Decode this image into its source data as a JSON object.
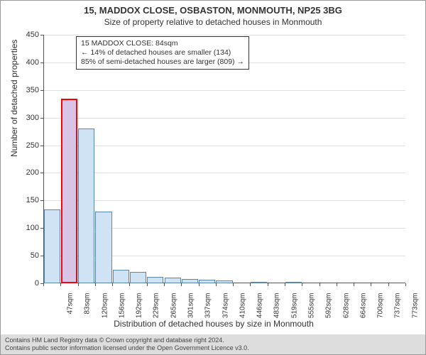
{
  "titles": {
    "main": "15, MADDOX CLOSE, OSBASTON, MONMOUTH, NP25 3BG",
    "sub": "Size of property relative to detached houses in Monmouth",
    "y_axis": "Number of detached properties",
    "x_axis": "Distribution of detached houses by size in Monmouth"
  },
  "annotation": {
    "line1": "15 MADDOX CLOSE: 84sqm",
    "line2": "← 14% of detached houses are smaller (134)",
    "line3": "85% of semi-detached houses are larger (809) →"
  },
  "footer": {
    "line1": "Contains HM Land Registry data © Crown copyright and database right 2024.",
    "line2": "Contains public sector information licensed under the Open Government Licence v3.0."
  },
  "chart": {
    "type": "histogram",
    "ylim": [
      0,
      450
    ],
    "ytick_step": 50,
    "background": "#ffffff",
    "grid_color": "#000000",
    "grid_opacity": 0.12,
    "axis_color": "#555555",
    "bar_width": 0.95,
    "bar_fill": "#cfe3f5",
    "bar_stroke": "#5a86b4",
    "bar_stroke_width": 1,
    "highlight_fill": "#d9c4e5",
    "highlight_stroke": "#ff0000",
    "highlight_stroke_width": 2,
    "highlight_index": 1,
    "data": [
      {
        "label": "47sqm",
        "value": 134
      },
      {
        "label": "83sqm",
        "value": 334
      },
      {
        "label": "120sqm",
        "value": 280
      },
      {
        "label": "156sqm",
        "value": 130
      },
      {
        "label": "192sqm",
        "value": 25
      },
      {
        "label": "229sqm",
        "value": 20
      },
      {
        "label": "265sqm",
        "value": 12
      },
      {
        "label": "301sqm",
        "value": 10
      },
      {
        "label": "337sqm",
        "value": 8
      },
      {
        "label": "374sqm",
        "value": 6
      },
      {
        "label": "410sqm",
        "value": 5
      },
      {
        "label": "446sqm",
        "value": 0
      },
      {
        "label": "483sqm",
        "value": 2
      },
      {
        "label": "519sqm",
        "value": 0
      },
      {
        "label": "555sqm",
        "value": 3
      },
      {
        "label": "592sqm",
        "value": 0
      },
      {
        "label": "628sqm",
        "value": 0
      },
      {
        "label": "664sqm",
        "value": 0
      },
      {
        "label": "700sqm",
        "value": 0
      },
      {
        "label": "737sqm",
        "value": 0
      },
      {
        "label": "773sqm",
        "value": 0
      }
    ],
    "label_fontsize": 10,
    "tick_fontsize": 11,
    "title_fontsize": 13,
    "subtitle_fontsize": 12,
    "annotation_fontsize": 10.5
  }
}
